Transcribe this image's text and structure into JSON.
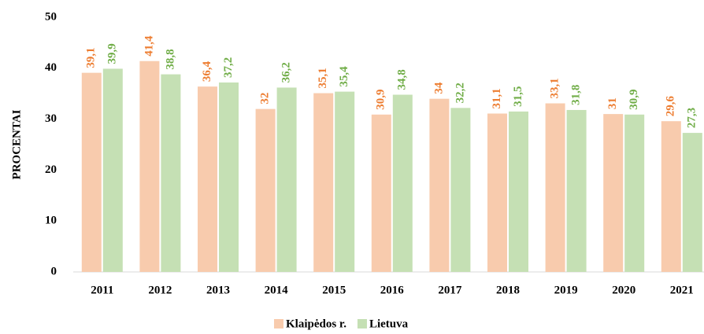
{
  "chart_data": {
    "type": "bar",
    "y_label": "PROCENTAI",
    "categories": [
      "2011",
      "2012",
      "2013",
      "2014",
      "2015",
      "2016",
      "2017",
      "2018",
      "2019",
      "2020",
      "2021"
    ],
    "series": [
      {
        "name": "Klaipėdos r.",
        "color": "#f8cbad",
        "label_color": "#ed7d31",
        "values": [
          39.1,
          41.4,
          36.4,
          32,
          35.1,
          30.9,
          34,
          31.1,
          33.1,
          31,
          29.6
        ],
        "value_labels": [
          "39,1",
          "41,4",
          "36,4",
          "32",
          "35,1",
          "30,9",
          "34",
          "31,1",
          "33,1",
          "31",
          "29,6"
        ]
      },
      {
        "name": "Lietuva",
        "color": "#c5e0b4",
        "label_color": "#70ad47",
        "values": [
          39.9,
          38.8,
          37.2,
          36.2,
          35.4,
          34.8,
          32.2,
          31.5,
          31.8,
          30.9,
          27.3
        ],
        "value_labels": [
          "39,9",
          "38,8",
          "37,2",
          "36,2",
          "35,4",
          "34,8",
          "32,2",
          "31,5",
          "31,8",
          "30,9",
          "27,3"
        ]
      }
    ],
    "ylim": [
      0,
      50
    ],
    "yticks": [
      0,
      10,
      20,
      30,
      40,
      50
    ],
    "grid": false,
    "legend": "bottom"
  }
}
